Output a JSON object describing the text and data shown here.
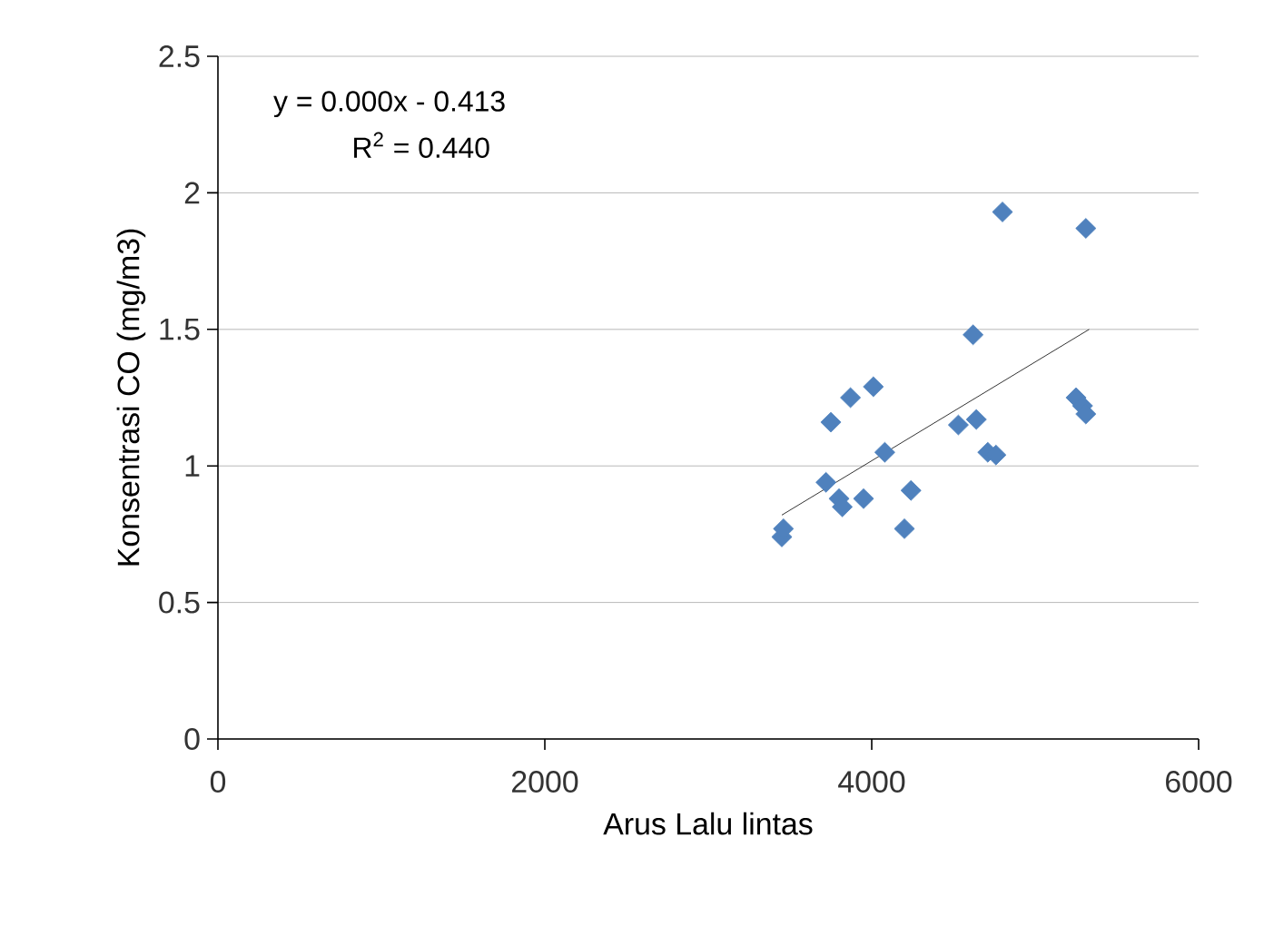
{
  "chart_data": {
    "type": "scatter",
    "xlabel": "Arus Lalu lintas",
    "ylabel": "Konsentrasi CO (mg/m3)",
    "annotations": [
      "y = 0.000x - 0.413",
      "R$^{2}$ = 0.440"
    ],
    "series": [
      {
        "color": "#4f81bd",
        "marker": "diamond",
        "x": [
          3450,
          3460,
          3720,
          3750,
          3800,
          3820,
          3870,
          3950,
          4010,
          4080,
          4200,
          4240,
          4530,
          4620,
          4640,
          4710,
          4760,
          4800,
          5250,
          5290,
          5310,
          5310
        ],
        "values": [
          0.74,
          0.77,
          0.94,
          1.16,
          0.88,
          0.85,
          1.25,
          0.88,
          1.29,
          1.05,
          0.77,
          0.91,
          1.15,
          1.48,
          1.17,
          1.05,
          1.04,
          1.93,
          1.25,
          1.22,
          1.19,
          1.87
        ]
      },
      {
        "type": "line",
        "color": "#000000",
        "marker": "none",
        "x": [
          3450,
          5330
        ],
        "values": [
          0.82,
          1.5
        ]
      }
    ],
    "xlim": [
      0,
      6000
    ],
    "xticks": [
      0,
      2000,
      4000,
      6000
    ],
    "ylim": [
      0,
      2.5
    ],
    "yticks": [
      0,
      0.5,
      1,
      1.5,
      2,
      2.5
    ],
    "grid": "y"
  }
}
